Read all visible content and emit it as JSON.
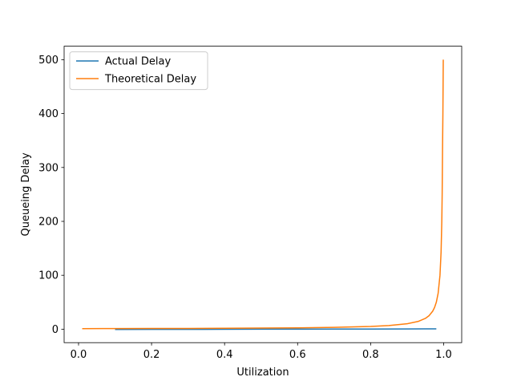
{
  "chart_data": {
    "type": "line",
    "xlabel": "Utilization",
    "ylabel": "Queueing Delay",
    "xlim": [
      -0.0395,
      1.0495
    ],
    "ylim": [
      -25,
      525
    ],
    "xticks": [
      {
        "value": 0.0,
        "label": "0.0"
      },
      {
        "value": 0.2,
        "label": "0.2"
      },
      {
        "value": 0.4,
        "label": "0.4"
      },
      {
        "value": 0.6,
        "label": "0.6"
      },
      {
        "value": 0.8,
        "label": "0.8"
      },
      {
        "value": 1.0,
        "label": "1.0"
      }
    ],
    "yticks": [
      {
        "value": 0,
        "label": "0"
      },
      {
        "value": 100,
        "label": "100"
      },
      {
        "value": 200,
        "label": "200"
      },
      {
        "value": 300,
        "label": "300"
      },
      {
        "value": 400,
        "label": "400"
      },
      {
        "value": 500,
        "label": "500"
      }
    ],
    "grid": false,
    "legend_position": "top-left",
    "series": [
      {
        "name": "Actual Delay",
        "color": "#1f77b4",
        "x": [
          0.1,
          0.2,
          0.3,
          0.4,
          0.5,
          0.6,
          0.7,
          0.8,
          0.9,
          0.95,
          0.98
        ],
        "y": [
          -0.5,
          -0.4,
          -0.3,
          -0.2,
          0.0,
          0.1,
          0.2,
          0.3,
          0.4,
          0.5,
          0.5
        ]
      },
      {
        "name": "Theoretical Delay",
        "color": "#ff7f0e",
        "x": [
          0.01,
          0.1,
          0.2,
          0.3,
          0.4,
          0.5,
          0.6,
          0.7,
          0.8,
          0.85,
          0.9,
          0.93,
          0.95,
          0.96,
          0.97,
          0.975,
          0.98,
          0.985,
          0.99,
          0.993,
          0.995,
          0.996,
          0.997,
          0.998,
          0.999
        ],
        "y": [
          1.01,
          1.11,
          1.25,
          1.43,
          1.67,
          2.0,
          2.5,
          3.33,
          5.0,
          6.67,
          10.0,
          14.3,
          20.0,
          25.0,
          33.3,
          40.0,
          50.0,
          66.7,
          100.0,
          142.9,
          200.0,
          250.0,
          333.3,
          400.0,
          500.0
        ]
      }
    ]
  }
}
